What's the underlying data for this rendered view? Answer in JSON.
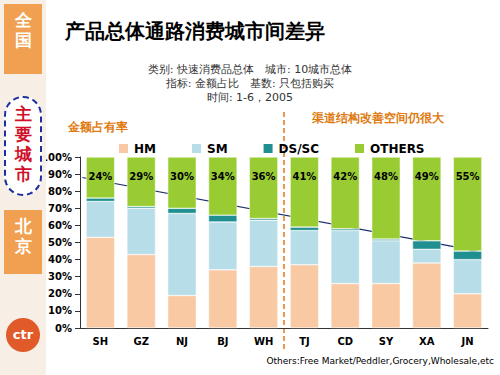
{
  "chart_data": {
    "type": "bar",
    "title": "产品总体通路消费城市间差异",
    "subtitle": [
      "类别: 快速消费品总体　城市: 10城市总体",
      "指标: 金额占比　基数: 只包括购买",
      "时间: 1-6，2005"
    ],
    "ylabel": "金额占有率",
    "annotation": "渠道结构改善空间仍很大",
    "footnote": "Others:Free Market/Peddler,Grocery,Wholesale,etc",
    "categories": [
      "SH",
      "GZ",
      "NJ",
      "BJ",
      "WH",
      "TJ",
      "CD",
      "SY",
      "XA",
      "JN"
    ],
    "series": [
      {
        "name": "HM",
        "color": "#f9c9a3",
        "values": [
          53,
          43,
          19,
          34,
          36,
          37,
          26,
          26,
          38,
          20
        ]
      },
      {
        "name": "SM",
        "color": "#b7dde8",
        "values": [
          21,
          27,
          48,
          28,
          27,
          20,
          31,
          25,
          8,
          20
        ]
      },
      {
        "name": "DS/SC",
        "color": "#1f8f8f",
        "values": [
          2,
          1,
          3,
          4,
          1,
          2,
          1,
          1,
          5,
          5
        ]
      },
      {
        "name": "OTHERS",
        "color": "#99cc33",
        "values": [
          24,
          29,
          30,
          34,
          36,
          41,
          42,
          48,
          49,
          55
        ],
        "data_labels": true,
        "value_labels": [
          "24%",
          "29%",
          "30%",
          "34%",
          "36%",
          "41%",
          "42%",
          "48%",
          "49%",
          "55%"
        ]
      }
    ],
    "stacked": true,
    "legend": "top",
    "grid": false,
    "ylim": [
      0,
      100
    ],
    "yticks": [
      {
        "value": 0,
        "label": "0%"
      },
      {
        "value": 10,
        "label": "10%"
      },
      {
        "value": 20,
        "label": "20%"
      },
      {
        "value": 30,
        "label": "30%"
      },
      {
        "value": 40,
        "label": "40%"
      },
      {
        "value": 50,
        "label": "50%"
      },
      {
        "value": 60,
        "label": "60%"
      },
      {
        "value": 70,
        "label": "70%"
      },
      {
        "value": 80,
        "label": "80%"
      },
      {
        "value": 90,
        "label": "90%"
      },
      {
        "value": 100,
        "label": "100%"
      }
    ]
  },
  "sidebar": [
    "全国",
    "主要城市",
    "北京"
  ],
  "logo": "ctr"
}
